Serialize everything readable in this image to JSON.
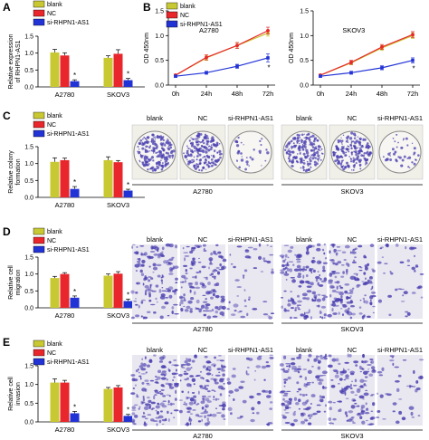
{
  "colors": {
    "blank": "#c8c832",
    "NC": "#e8262b",
    "si": "#2233d6",
    "stain": "#4a3fb0",
    "bg": "#ffffff"
  },
  "legend": [
    "blank",
    "NC",
    "si-RHPN1-AS1"
  ],
  "panel_labels": [
    "A",
    "B",
    "C",
    "D",
    "E"
  ],
  "chart_data": [
    {
      "panel": "A",
      "type": "bar",
      "categories": [
        "A2780",
        "SKOV3"
      ],
      "ylabel": "Relative expression of RHPN1-AS1",
      "ylim": [
        0,
        1.5
      ],
      "yticks": [
        0.0,
        0.5,
        1.0,
        1.5
      ],
      "series": [
        {
          "name": "blank",
          "values": [
            1.02,
            0.86
          ],
          "errors": [
            0.09,
            0.06
          ]
        },
        {
          "name": "NC",
          "values": [
            0.93,
            0.98
          ],
          "errors": [
            0.08,
            0.12
          ]
        },
        {
          "name": "si-RHPN1-AS1",
          "values": [
            0.17,
            0.2
          ],
          "errors": [
            0.04,
            0.05
          ]
        }
      ],
      "annotations": [
        "*",
        "*"
      ]
    },
    {
      "panel": "B-A2780",
      "type": "line",
      "x": [
        "0h",
        "24h",
        "48h",
        "72h"
      ],
      "subtitle": "A2780",
      "ylabel": "OD 450nm",
      "ylim": [
        0,
        1.5
      ],
      "yticks": [
        0.0,
        0.5,
        1.0,
        1.5
      ],
      "series": [
        {
          "name": "blank",
          "values": [
            0.2,
            0.55,
            0.8,
            1.05
          ],
          "errors": [
            0.02,
            0.05,
            0.05,
            0.06
          ]
        },
        {
          "name": "NC",
          "values": [
            0.2,
            0.56,
            0.8,
            1.1
          ],
          "errors": [
            0.02,
            0.05,
            0.06,
            0.07
          ]
        },
        {
          "name": "si-RHPN1-AS1",
          "values": [
            0.18,
            0.25,
            0.38,
            0.55
          ],
          "errors": [
            0.02,
            0.03,
            0.04,
            0.08
          ]
        }
      ],
      "annotations": [
        "*",
        "*"
      ]
    },
    {
      "panel": "B-SKOV3",
      "type": "line",
      "x": [
        "0h",
        "24h",
        "48h",
        "72h"
      ],
      "subtitle": "SKOV3",
      "ylabel": "OD 450nm",
      "ylim": [
        0,
        1.5
      ],
      "yticks": [
        0.0,
        0.5,
        1.0,
        1.5
      ],
      "series": [
        {
          "name": "blank",
          "values": [
            0.2,
            0.45,
            0.75,
            1.0
          ],
          "errors": [
            0.02,
            0.04,
            0.05,
            0.06
          ]
        },
        {
          "name": "NC",
          "values": [
            0.2,
            0.46,
            0.77,
            1.02
          ],
          "errors": [
            0.02,
            0.04,
            0.05,
            0.06
          ]
        },
        {
          "name": "si-RHPN1-AS1",
          "values": [
            0.18,
            0.25,
            0.35,
            0.5
          ],
          "errors": [
            0.02,
            0.03,
            0.04,
            0.05
          ]
        }
      ],
      "annotations": [
        "*",
        "*"
      ]
    },
    {
      "panel": "C",
      "type": "bar",
      "categories": [
        "A2780",
        "SKOV3"
      ],
      "ylabel": "Relative colony formation",
      "ylim": [
        0,
        1.5
      ],
      "yticks": [
        0.0,
        0.5,
        1.0,
        1.5
      ],
      "series": [
        {
          "name": "blank",
          "values": [
            1.05,
            1.1
          ],
          "errors": [
            0.12,
            0.1
          ]
        },
        {
          "name": "NC",
          "values": [
            1.1,
            1.04
          ],
          "errors": [
            0.06,
            0.05
          ]
        },
        {
          "name": "si-RHPN1-AS1",
          "values": [
            0.25,
            0.2
          ],
          "errors": [
            0.07,
            0.04
          ]
        }
      ],
      "annotations": [
        "*",
        "*"
      ]
    },
    {
      "panel": "D",
      "type": "bar",
      "categories": [
        "A2780",
        "SKOV3"
      ],
      "ylabel": "Relative cell migration",
      "ylim": [
        0,
        1.5
      ],
      "yticks": [
        0.0,
        0.5,
        1.0,
        1.5
      ],
      "series": [
        {
          "name": "blank",
          "values": [
            0.88,
            0.95
          ],
          "errors": [
            0.05,
            0.05
          ]
        },
        {
          "name": "NC",
          "values": [
            1.0,
            1.01
          ],
          "errors": [
            0.04,
            0.06
          ]
        },
        {
          "name": "si-RHPN1-AS1",
          "values": [
            0.3,
            0.2
          ],
          "errors": [
            0.05,
            0.06
          ]
        }
      ],
      "annotations": [
        "*",
        "*"
      ]
    },
    {
      "panel": "E",
      "type": "bar",
      "categories": [
        "A2780",
        "SKOV3"
      ],
      "ylabel": "Relative cell invasion",
      "ylim": [
        0,
        1.5
      ],
      "yticks": [
        0.0,
        0.5,
        1.0,
        1.5
      ],
      "series": [
        {
          "name": "blank",
          "values": [
            1.05,
            0.88
          ],
          "errors": [
            0.1,
            0.04
          ]
        },
        {
          "name": "NC",
          "values": [
            1.05,
            0.92
          ],
          "errors": [
            0.06,
            0.05
          ]
        },
        {
          "name": "si-RHPN1-AS1",
          "values": [
            0.23,
            0.16
          ],
          "errors": [
            0.05,
            0.04
          ]
        }
      ],
      "annotations": [
        "*",
        "*"
      ]
    }
  ],
  "images": {
    "C": {
      "labels": [
        "blank",
        "NC",
        "si-RHPN1-AS1",
        "blank",
        "NC",
        "si-RHPN1-AS1"
      ],
      "groups": [
        "A2780",
        "SKOV3"
      ],
      "density": [
        0.9,
        0.92,
        0.15,
        0.8,
        0.85,
        0.2
      ]
    },
    "D": {
      "labels": [
        "blank",
        "NC",
        "si-RHPN1-AS1",
        "blank",
        "NC",
        "si-RHPN1-AS1"
      ],
      "groups": [
        "A2780",
        "SKOV3"
      ],
      "density": [
        0.85,
        0.85,
        0.3,
        0.9,
        0.9,
        0.25
      ]
    },
    "E": {
      "labels": [
        "blank",
        "NC",
        "si-RHPN1-AS1",
        "blank",
        "NC",
        "si-RHPN1-AS1"
      ],
      "groups": [
        "A2780",
        "SKOV3"
      ],
      "density": [
        0.9,
        0.9,
        0.3,
        0.8,
        0.8,
        0.25
      ]
    }
  }
}
